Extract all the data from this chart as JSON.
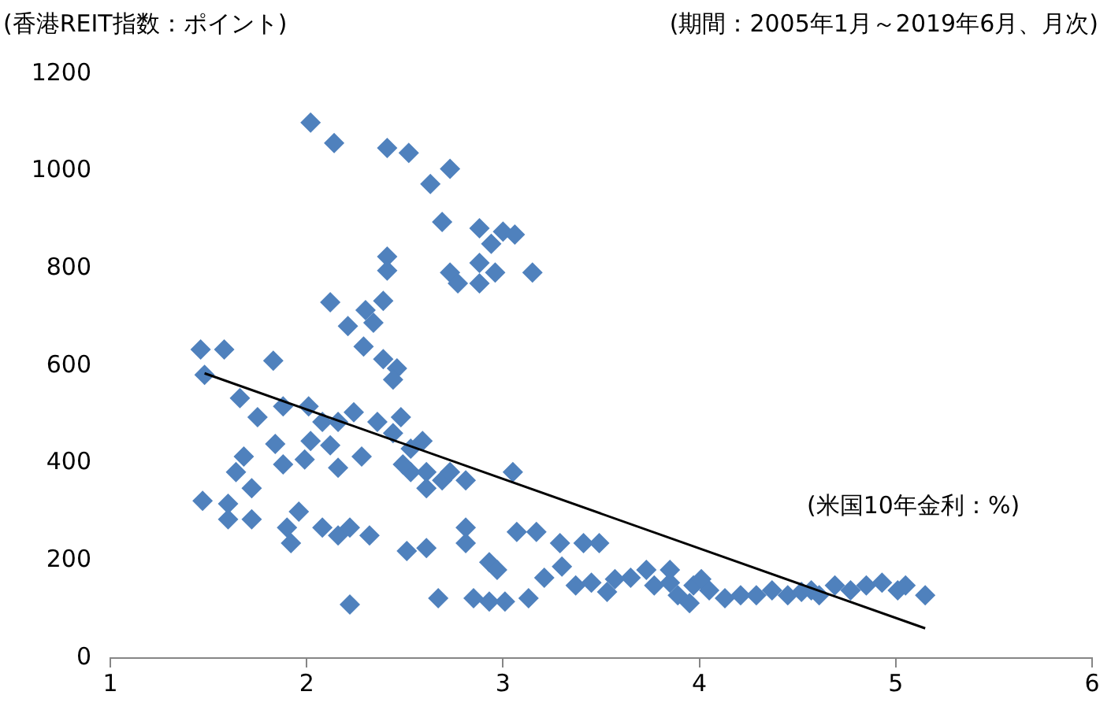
{
  "chart_data": {
    "type": "scatter",
    "ylabel": "(香港REIT指数：ポイント)",
    "subtitle": "(期間：2005年1月～2019年6月、月次)",
    "xlabel": "(米国10年金利：%)",
    "xlim": [
      1,
      6
    ],
    "xticks": [
      1,
      2,
      3,
      4,
      5,
      6
    ],
    "ylim": [
      0,
      1200
    ],
    "yticks": [
      0,
      200,
      400,
      600,
      800,
      1000,
      1200
    ],
    "grid": false,
    "legend": false,
    "marker": "diamond",
    "series": [
      {
        "color": "#4f81bd",
        "x": [
          2.02,
          2.14,
          2.41,
          2.52,
          2.73,
          2.63,
          2.69,
          2.88,
          3.0,
          3.06,
          2.94,
          2.41,
          2.88,
          2.41,
          2.73,
          2.77,
          2.88,
          2.96,
          3.15,
          2.12,
          2.39,
          2.3,
          2.34,
          2.21,
          2.29,
          2.39,
          2.46,
          2.44,
          1.46,
          1.58,
          1.83,
          1.48,
          1.66,
          1.88,
          1.75,
          2.01,
          2.08,
          2.16,
          2.24,
          2.36,
          2.48,
          2.59,
          2.44,
          2.02,
          2.12,
          2.53,
          1.84,
          2.28,
          2.53,
          2.61,
          2.69,
          2.73,
          2.81,
          2.49,
          2.61,
          3.05,
          1.68,
          1.64,
          1.88,
          1.99,
          2.16,
          1.72,
          1.6,
          1.47,
          1.6,
          1.96,
          1.9,
          1.72,
          1.92,
          2.08,
          2.16,
          2.22,
          2.32,
          2.51,
          2.61,
          2.81,
          2.81,
          2.93,
          2.97,
          2.22,
          2.67,
          3.07,
          3.17,
          3.29,
          3.41,
          3.49,
          2.85,
          3.01,
          3.13,
          2.93,
          3.21,
          3.3,
          3.37,
          3.45,
          3.53,
          3.57,
          3.65,
          3.73,
          3.77,
          3.85,
          3.89,
          3.95,
          3.97,
          4.05,
          4.13,
          4.21,
          4.29,
          4.37,
          4.45,
          4.52,
          4.57,
          4.61,
          4.69,
          4.77,
          4.85,
          4.93,
          5.01,
          5.05,
          5.15,
          3.85,
          4.01
        ],
        "values": [
          1100,
          1058,
          1048,
          1038,
          1005,
          974,
          896,
          883,
          876,
          870,
          851,
          825,
          812,
          796,
          792,
          770,
          770,
          792,
          792,
          731,
          734,
          715,
          689,
          682,
          640,
          614,
          595,
          572,
          634,
          634,
          611,
          582,
          534,
          517,
          495,
          517,
          485,
          485,
          505,
          485,
          495,
          446,
          462,
          446,
          437,
          430,
          440,
          414,
          382,
          382,
          365,
          382,
          365,
          398,
          349,
          382,
          414,
          382,
          398,
          408,
          391,
          349,
          317,
          323,
          285,
          301,
          268,
          285,
          236,
          268,
          252,
          268,
          252,
          220,
          226,
          268,
          236,
          197,
          181,
          110,
          123,
          259,
          259,
          236,
          236,
          236,
          123,
          116,
          123,
          116,
          165,
          188,
          149,
          155,
          136,
          162,
          165,
          181,
          149,
          155,
          129,
          113,
          149,
          139,
          123,
          129,
          129,
          139,
          129,
          136,
          139,
          129,
          149,
          139,
          149,
          155,
          139,
          149,
          129,
          181,
          162
        ]
      },
      {
        "type": "line",
        "color": "#000000",
        "marker": "none",
        "x": [
          1.48,
          5.15
        ],
        "values": [
          585,
          61
        ]
      }
    ]
  }
}
